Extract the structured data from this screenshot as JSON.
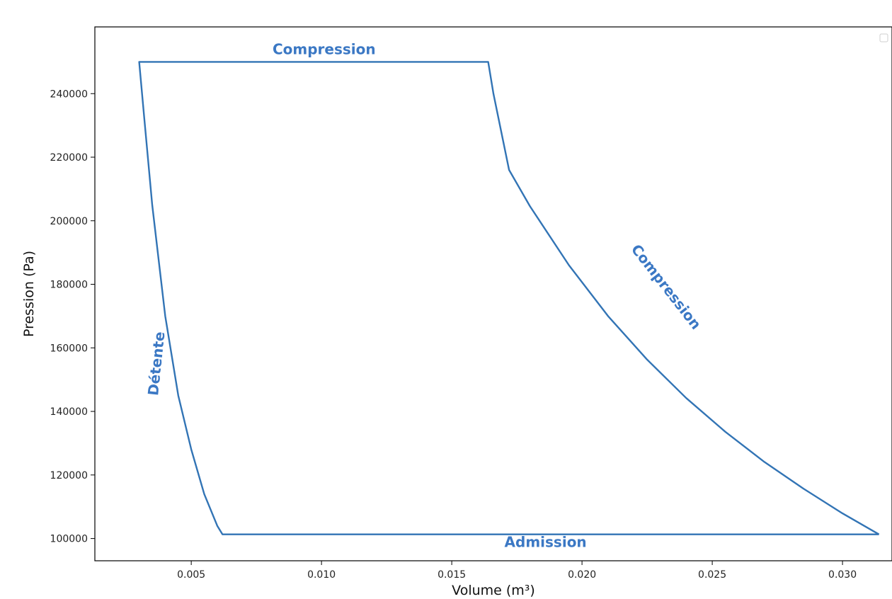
{
  "chart_data": {
    "type": "line",
    "title": "",
    "xlabel": "Volume (m³)",
    "ylabel": "Pression (Pa)",
    "xlim": [
      0.0013,
      0.0319
    ],
    "ylim": [
      93000,
      261000
    ],
    "xticks": [
      0.005,
      0.01,
      0.015,
      0.02,
      0.025,
      0.03
    ],
    "xtick_labels": [
      "0.005",
      "0.010",
      "0.015",
      "0.020",
      "0.025",
      "0.030"
    ],
    "yticks": [
      100000,
      120000,
      140000,
      160000,
      180000,
      200000,
      220000,
      240000
    ],
    "ytick_labels": [
      "100000",
      "120000",
      "140000",
      "160000",
      "180000",
      "200000",
      "220000",
      "240000"
    ],
    "grid": false,
    "line_color": "#3274b5",
    "annotation_color": "#3b78c4",
    "series": [
      {
        "x": [
          0.0314,
          0.03,
          0.0285,
          0.027,
          0.0255,
          0.024,
          0.0225,
          0.021,
          0.0195,
          0.018,
          0.0172,
          0.0166,
          0.0164,
          0.003,
          0.0032,
          0.0035,
          0.004,
          0.0045,
          0.005,
          0.0055,
          0.006,
          0.0062,
          0.0314
        ],
        "y": [
          101300,
          107900,
          115700,
          124100,
          133600,
          144200,
          156300,
          170000,
          186000,
          204600,
          216000,
          240000,
          250000,
          250000,
          232000,
          205000,
          170000,
          145000,
          128000,
          114000,
          104000,
          101300,
          101300
        ]
      }
    ],
    "annotations": [
      {
        "text": "Compression",
        "x": 0.0101,
        "y": 253600,
        "rotation": 0
      },
      {
        "text": "Compression",
        "x": 0.0232,
        "y": 179000,
        "rotation": 52
      },
      {
        "text": "Détente",
        "x": 0.0037,
        "y": 155000,
        "rotation": -84
      },
      {
        "text": "Admission",
        "x": 0.0186,
        "y": 98600,
        "rotation": 0
      }
    ]
  }
}
